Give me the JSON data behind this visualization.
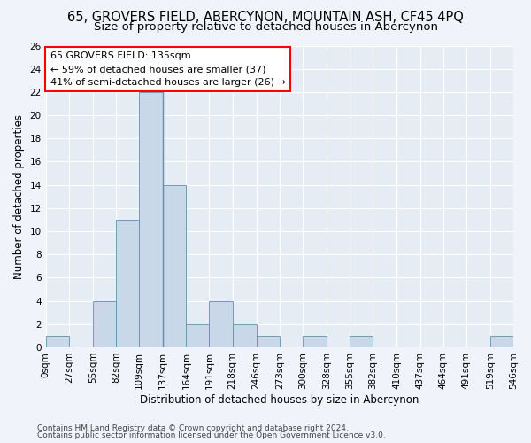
{
  "title1": "65, GROVERS FIELD, ABERCYNON, MOUNTAIN ASH, CF45 4PQ",
  "title2": "Size of property relative to detached houses in Abercynon",
  "xlabel": "Distribution of detached houses by size in Abercynon",
  "ylabel": "Number of detached properties",
  "bar_color": "#c8d8e8",
  "bar_edge_color": "#6090b0",
  "bins": [
    0,
    27,
    55,
    82,
    109,
    137,
    164,
    191,
    218,
    246,
    273,
    300,
    328,
    355,
    382,
    410,
    437,
    464,
    491,
    519,
    546
  ],
  "counts": [
    1,
    0,
    4,
    11,
    22,
    14,
    2,
    4,
    2,
    1,
    0,
    1,
    0,
    1,
    0,
    0,
    0,
    0,
    0,
    1
  ],
  "ylim": [
    0,
    26
  ],
  "yticks": [
    0,
    2,
    4,
    6,
    8,
    10,
    12,
    14,
    16,
    18,
    20,
    22,
    24,
    26
  ],
  "tick_labels": [
    "0sqm",
    "27sqm",
    "55sqm",
    "82sqm",
    "109sqm",
    "137sqm",
    "164sqm",
    "191sqm",
    "218sqm",
    "246sqm",
    "273sqm",
    "300sqm",
    "328sqm",
    "355sqm",
    "382sqm",
    "410sqm",
    "437sqm",
    "464sqm",
    "491sqm",
    "519sqm",
    "546sqm"
  ],
  "annotation_text_line1": "65 GROVERS FIELD: 135sqm",
  "annotation_text_line2": "← 59% of detached houses are smaller (37)",
  "annotation_text_line3": "41% of semi-detached houses are larger (26) →",
  "vline_x": 137,
  "footer1": "Contains HM Land Registry data © Crown copyright and database right 2024.",
  "footer2": "Contains public sector information licensed under the Open Government Licence v3.0.",
  "fig_bg": "#f0f4fa",
  "ax_bg": "#e6ecf4",
  "grid_color": "#ffffff",
  "title1_fontsize": 10.5,
  "title2_fontsize": 9.5,
  "axis_label_fontsize": 8.5,
  "tick_fontsize": 7.5,
  "footer_fontsize": 6.5,
  "annotation_fontsize": 8
}
